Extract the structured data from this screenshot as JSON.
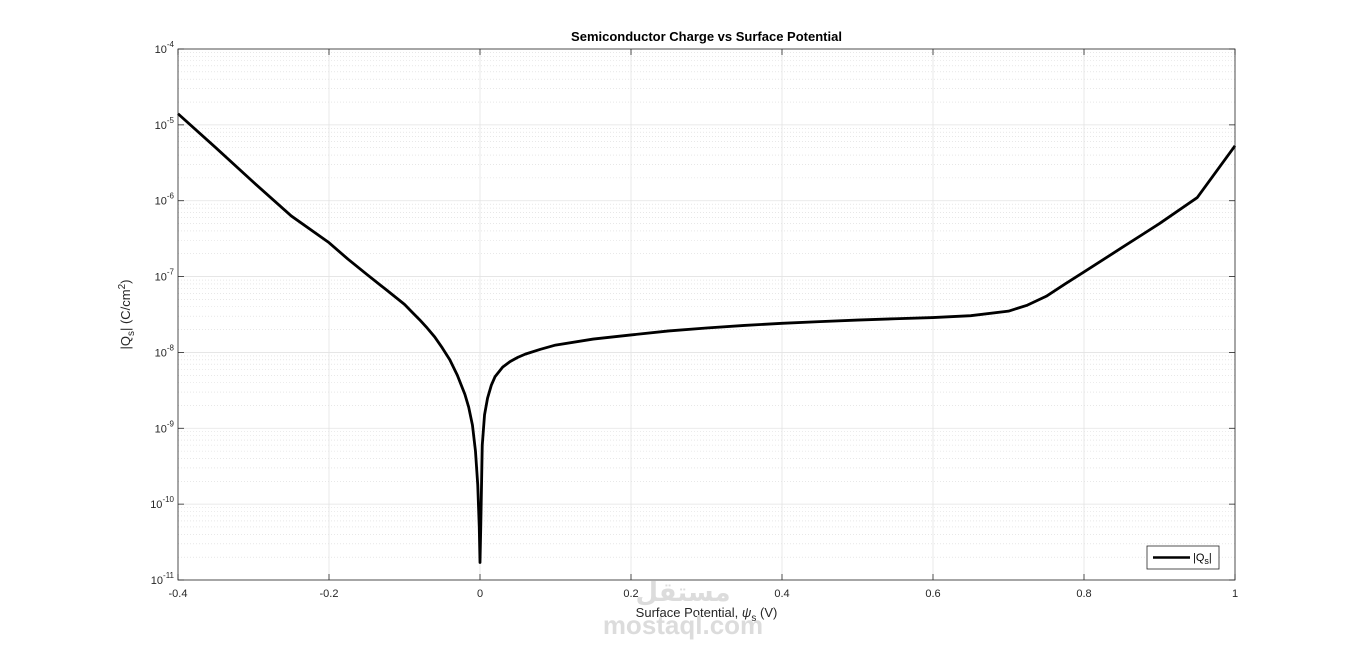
{
  "chart_data": {
    "type": "line",
    "title": "Semiconductor Charge vs Surface Potential",
    "xlabel": {
      "main": "Surface Potential, ",
      "symbol": "ψ",
      "sub": "s",
      "unit": " (V)"
    },
    "ylabel": {
      "prefix": "|Q",
      "sub": "s",
      "middle": "| (C/cm",
      "sup": "2",
      "suffix": ")"
    },
    "x_ticks": [
      -0.4,
      -0.2,
      0,
      0.2,
      0.4,
      0.6,
      0.8,
      1
    ],
    "x_tick_labels": [
      "-0.4",
      "-0.2",
      "0",
      "0.2",
      "0.4",
      "0.6",
      "0.8",
      "1"
    ],
    "y_ticks": [
      -11,
      -10,
      -9,
      -8,
      -7,
      -6,
      -5,
      -4
    ],
    "y_tick_labels": [
      {
        "base": "10",
        "exp": "-11"
      },
      {
        "base": "10",
        "exp": "-10"
      },
      {
        "base": "10",
        "exp": "-9"
      },
      {
        "base": "10",
        "exp": "-8"
      },
      {
        "base": "10",
        "exp": "-7"
      },
      {
        "base": "10",
        "exp": "-6"
      },
      {
        "base": "10",
        "exp": "-5"
      },
      {
        "base": "10",
        "exp": "-4"
      }
    ],
    "xlim": [
      -0.4,
      1.0
    ],
    "ylim": [
      1e-11,
      0.0001
    ],
    "y_scale": "log",
    "grid": true,
    "minor_grid": true,
    "legend_position": "bottom-right",
    "series": [
      {
        "name": "|Q_s|",
        "legend_label": {
          "prefix": "|Q",
          "sub": "s",
          "suffix": "|"
        },
        "color": "#000000",
        "x": [
          -0.4,
          -0.35,
          -0.3,
          -0.25,
          -0.2,
          -0.175,
          -0.15,
          -0.125,
          -0.1,
          -0.09,
          -0.08,
          -0.07,
          -0.06,
          -0.05,
          -0.04,
          -0.03,
          -0.02,
          -0.015,
          -0.01,
          -0.006,
          -0.003,
          -0.001,
          0.0,
          0.001,
          0.003,
          0.006,
          0.01,
          0.015,
          0.02,
          0.03,
          0.04,
          0.05,
          0.06,
          0.08,
          0.1,
          0.15,
          0.2,
          0.25,
          0.3,
          0.35,
          0.4,
          0.45,
          0.5,
          0.55,
          0.6,
          0.65,
          0.7,
          0.725,
          0.75,
          0.775,
          0.8,
          0.85,
          0.9,
          0.95,
          1.0
        ],
        "y": [
          1.4e-05,
          5e-06,
          1.75e-06,
          6.3e-07,
          2.8e-07,
          1.7e-07,
          1.07e-07,
          6.8e-08,
          4.3e-08,
          3.4e-08,
          2.7e-08,
          2.1e-08,
          1.6e-08,
          1.15e-08,
          8e-09,
          5e-09,
          2.8e-09,
          1.9e-09,
          1.1e-09,
          5e-10,
          1.8e-10,
          5e-11,
          1.7e-11,
          5e-11,
          6e-10,
          1.5e-09,
          2.5e-09,
          3.7e-09,
          4.8e-09,
          6.4e-09,
          7.6e-09,
          8.6e-09,
          9.5e-09,
          1.1e-08,
          1.25e-08,
          1.5e-08,
          1.7e-08,
          1.92e-08,
          2.1e-08,
          2.27e-08,
          2.42e-08,
          2.55e-08,
          2.67e-08,
          2.78e-08,
          2.88e-08,
          3.05e-08,
          3.5e-08,
          4.2e-08,
          5.5e-08,
          8e-08,
          1.15e-07,
          2.4e-07,
          5e-07,
          1.1e-06,
          5.3e-06
        ]
      }
    ]
  },
  "watermark": {
    "line1": "مستقل",
    "line2": "mostaql.com"
  }
}
